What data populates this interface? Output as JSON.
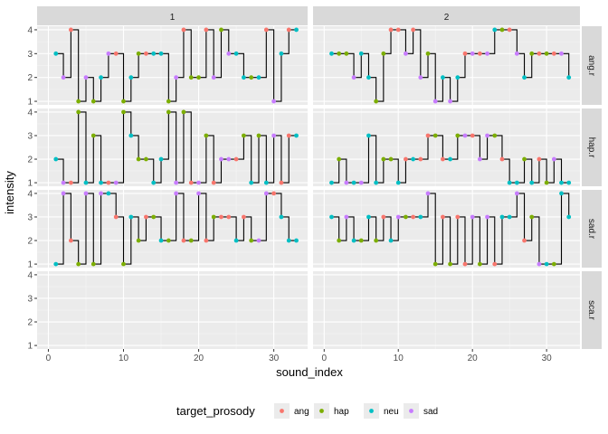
{
  "colors": {
    "ang": "#F8766D",
    "hap": "#7CAE00",
    "neu": "#00BFC4",
    "sad": "#C77CFF",
    "panel_bg": "#EBEBEB",
    "strip_bg": "#D9D9D9",
    "line": "#000000"
  },
  "chart_data": {
    "type": "step",
    "xlabel": "sound_index",
    "ylabel": "intensity",
    "x_ticks": [
      0,
      10,
      20,
      30
    ],
    "y_ticks": [
      1,
      2,
      3,
      4
    ],
    "xlim": [
      0,
      33
    ],
    "ylim": [
      1,
      4
    ],
    "grid": true,
    "legend": {
      "title": "target_prosody",
      "position": "bottom",
      "entries": [
        "ang",
        "hap",
        "neu",
        "sad"
      ]
    },
    "column_facets": [
      "1",
      "2"
    ],
    "row_facets": [
      "ang.r",
      "hap.r",
      "sad.r",
      "sca.r"
    ],
    "panels": [
      {
        "col": "1",
        "row": "ang.r",
        "y": [
          3,
          2,
          4,
          1,
          2,
          1,
          2,
          3,
          3,
          1,
          2,
          3,
          3,
          3,
          3,
          1,
          2,
          4,
          2,
          2,
          4,
          2,
          4,
          3,
          3,
          2,
          2,
          2,
          4,
          1,
          3,
          4,
          4
        ],
        "prosody": [
          "neu",
          "sad",
          "ang",
          "hap",
          "sad",
          "hap",
          "neu",
          "sad",
          "ang",
          "hap",
          "neu",
          "hap",
          "ang",
          "neu",
          "neu",
          "hap",
          "sad",
          "ang",
          "hap",
          "hap",
          "ang",
          "sad",
          "hap",
          "sad",
          "neu",
          "neu",
          "hap",
          "neu",
          "ang",
          "sad",
          "neu",
          "ang",
          "neu"
        ]
      },
      {
        "col": "2",
        "row": "ang.r",
        "y": [
          3,
          3,
          3,
          2,
          3,
          2,
          1,
          3,
          4,
          4,
          3,
          4,
          2,
          3,
          1,
          2,
          1,
          2,
          3,
          3,
          3,
          3,
          4,
          4,
          4,
          3,
          2,
          3,
          3,
          3,
          3,
          3,
          2
        ],
        "prosody": [
          "neu",
          "hap",
          "hap",
          "sad",
          "neu",
          "neu",
          "hap",
          "hap",
          "ang",
          "ang",
          "sad",
          "ang",
          "sad",
          "hap",
          "sad",
          "neu",
          "sad",
          "neu",
          "ang",
          "sad",
          "ang",
          "sad",
          "neu",
          "hap",
          "ang",
          "sad",
          "neu",
          "hap",
          "ang",
          "hap",
          "ang",
          "sad",
          "neu"
        ]
      },
      {
        "col": "1",
        "row": "hap.r",
        "y": [
          2,
          1,
          1,
          4,
          1,
          3,
          1,
          1,
          1,
          4,
          3,
          2,
          2,
          1,
          2,
          4,
          1,
          4,
          1,
          1,
          3,
          1,
          2,
          2,
          2,
          3,
          1,
          3,
          1,
          3,
          1,
          3,
          3
        ],
        "prosody": [
          "neu",
          "sad",
          "ang",
          "hap",
          "neu",
          "hap",
          "neu",
          "ang",
          "sad",
          "hap",
          "neu",
          "hap",
          "hap",
          "neu",
          "neu",
          "hap",
          "sad",
          "hap",
          "ang",
          "sad",
          "hap",
          "ang",
          "sad",
          "sad",
          "ang",
          "hap",
          "neu",
          "hap",
          "neu",
          "sad",
          "ang",
          "ang",
          "neu"
        ]
      },
      {
        "col": "2",
        "row": "hap.r",
        "y": [
          1,
          2,
          1,
          1,
          1,
          3,
          1,
          2,
          2,
          1,
          2,
          2,
          2,
          3,
          3,
          2,
          2,
          3,
          3,
          3,
          2,
          3,
          3,
          2,
          1,
          1,
          2,
          1,
          2,
          1,
          2,
          1,
          1
        ],
        "prosody": [
          "neu",
          "hap",
          "sad",
          "neu",
          "sad",
          "neu",
          "neu",
          "hap",
          "hap",
          "neu",
          "ang",
          "neu",
          "ang",
          "ang",
          "hap",
          "ang",
          "neu",
          "hap",
          "sad",
          "ang",
          "sad",
          "sad",
          "hap",
          "ang",
          "neu",
          "neu",
          "hap",
          "neu",
          "ang",
          "hap",
          "sad",
          "neu",
          "neu"
        ]
      },
      {
        "col": "1",
        "row": "sad.r",
        "y": [
          1,
          4,
          2,
          1,
          4,
          1,
          4,
          4,
          3,
          1,
          3,
          2,
          3,
          3,
          2,
          2,
          4,
          2,
          2,
          4,
          2,
          3,
          3,
          3,
          2,
          3,
          2,
          2,
          4,
          4,
          3,
          2,
          2
        ],
        "prosody": [
          "neu",
          "sad",
          "ang",
          "hap",
          "sad",
          "hap",
          "sad",
          "neu",
          "ang",
          "hap",
          "neu",
          "hap",
          "ang",
          "hap",
          "neu",
          "hap",
          "sad",
          "ang",
          "hap",
          "sad",
          "ang",
          "hap",
          "ang",
          "ang",
          "neu",
          "ang",
          "hap",
          "sad",
          "sad",
          "ang",
          "neu",
          "neu",
          "neu"
        ]
      },
      {
        "col": "2",
        "row": "sad.r",
        "y": [
          3,
          2,
          3,
          2,
          2,
          3,
          2,
          3,
          2,
          3,
          3,
          3,
          3,
          4,
          1,
          3,
          1,
          3,
          1,
          3,
          1,
          3,
          1,
          3,
          3,
          4,
          2,
          3,
          1,
          1,
          1,
          4,
          3
        ],
        "prosody": [
          "neu",
          "hap",
          "sad",
          "neu",
          "hap",
          "neu",
          "hap",
          "ang",
          "neu",
          "sad",
          "hap",
          "ang",
          "neu",
          "sad",
          "hap",
          "ang",
          "hap",
          "ang",
          "ang",
          "sad",
          "hap",
          "sad",
          "ang",
          "neu",
          "neu",
          "sad",
          "ang",
          "hap",
          "sad",
          "neu",
          "hap",
          "neu",
          "neu"
        ]
      },
      {
        "col": "1",
        "row": "sca.r",
        "y": [],
        "prosody": []
      },
      {
        "col": "2",
        "row": "sca.r",
        "y": [],
        "prosody": []
      }
    ]
  }
}
